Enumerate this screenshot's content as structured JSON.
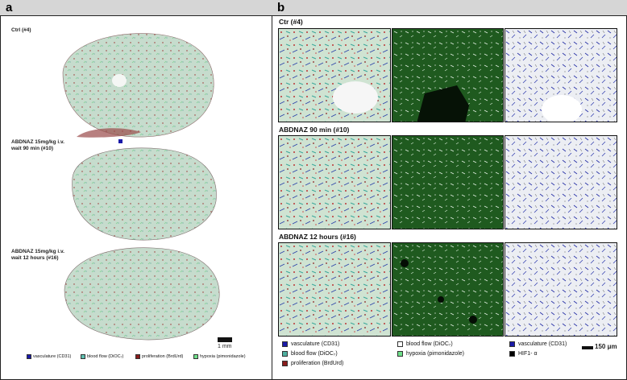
{
  "panel_a": {
    "letter": "a",
    "sections": [
      {
        "line1": "Ctrl (#4)",
        "line2": ""
      },
      {
        "line1": "ABDNAZ 15mg/kg i.v.",
        "line2": "wait 90 min (#10)"
      },
      {
        "line1": "ABDNAZ 15mg/kg i.v.",
        "line2": "wait 12 hours (#16)"
      }
    ],
    "scale_bar": "1 mm",
    "legend": [
      {
        "label": "vasculature (CD31)",
        "color": "#1a1aa8"
      },
      {
        "label": "blood flow (DiOC₇)",
        "color": "#5ec0b0"
      },
      {
        "label": "proliferation (BrdUrd)",
        "color": "#8a1c1c"
      },
      {
        "label": "hypoxia (pimonidazole)",
        "color": "#6fe08a"
      }
    ]
  },
  "panel_b": {
    "letter": "b",
    "rows": [
      "Ctr  (#4)",
      "ABDNAZ 90 min (#10)",
      "ABDNAZ 12 hours (#16)"
    ],
    "legend_col1": [
      {
        "label": "vasculature  (CD31)",
        "color": "#1a1aa8"
      },
      {
        "label": "blood flow  (DiOC₇)",
        "color": "#4fb0a0"
      },
      {
        "label": "proliferation  (BrdUrd)",
        "color": "#8a1c1c"
      }
    ],
    "legend_col2": [
      {
        "label": "blood flow  (DiOC₇)",
        "color": "#ffffff"
      },
      {
        "label": "hypoxia (pimonidazole)",
        "color": "#6fe08a"
      }
    ],
    "legend_col3": [
      {
        "label": "vasculature (CD31)",
        "color": "#1a1aa8"
      },
      {
        "label": "HIF1- α",
        "color": "#000000"
      }
    ],
    "scale_bar": "150 μm"
  }
}
